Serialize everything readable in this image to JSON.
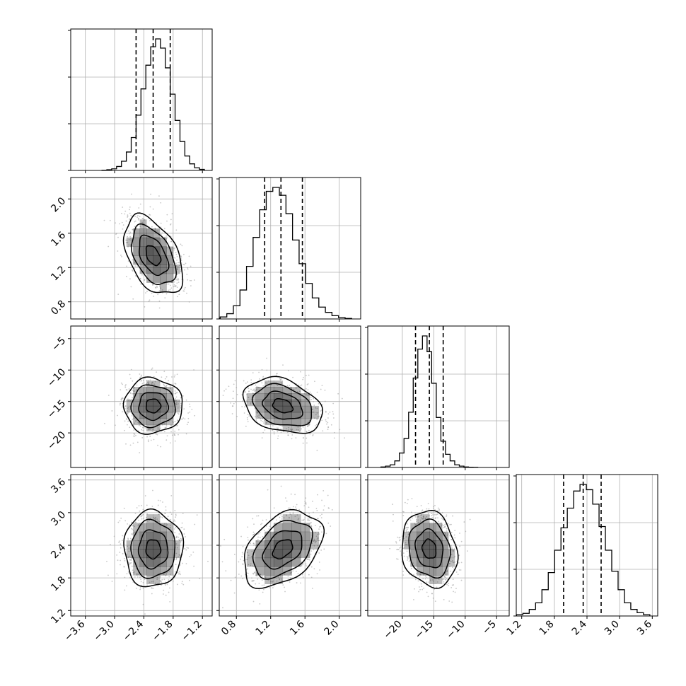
{
  "chart_data": {
    "type": "corner",
    "title": "",
    "parameters": [
      {
        "id": "p0",
        "label": "",
        "range": [
          -3.9,
          -1.0
        ],
        "ticks": [
          -3.6,
          -3.0,
          -2.4,
          -1.8,
          -1.2
        ],
        "tick_labels": [
          "−3.6",
          "−3.0",
          "−2.4",
          "−1.8",
          "−1.2"
        ],
        "quantiles": [
          -2.56,
          -2.21,
          -1.86
        ],
        "mean": -2.21,
        "sd": 0.3
      },
      {
        "id": "p1",
        "label": "",
        "range": [
          0.6,
          2.25
        ],
        "ticks": [
          0.8,
          1.2,
          1.6,
          2.0
        ],
        "tick_labels": [
          "0.8",
          "1.2",
          "1.6",
          "2.0"
        ],
        "quantiles": [
          1.13,
          1.32,
          1.57
        ],
        "mean": 1.34,
        "sd": 0.23
      },
      {
        "id": "p2",
        "label": "",
        "range": [
          -25.5,
          -3.0
        ],
        "ticks": [
          -20,
          -15,
          -10,
          -5
        ],
        "tick_labels": [
          "−20",
          "−15",
          "−10",
          "−5"
        ],
        "quantiles": [
          -17.9,
          -15.7,
          -13.5
        ],
        "mean": -15.7,
        "sd": 2.2
      },
      {
        "id": "p3",
        "label": "",
        "range": [
          1.1,
          3.7
        ],
        "ticks": [
          1.2,
          1.8,
          2.4,
          3.0,
          3.6
        ],
        "tick_labels": [
          "1.2",
          "1.8",
          "2.4",
          "3.0",
          "3.6"
        ],
        "quantiles": [
          1.97,
          2.33,
          2.66
        ],
        "mean": 2.33,
        "sd": 0.35
      }
    ],
    "correlations": [
      {
        "pair": [
          0,
          1
        ],
        "rho": -0.45
      },
      {
        "pair": [
          0,
          2
        ],
        "rho": 0.0
      },
      {
        "pair": [
          1,
          2
        ],
        "rho": -0.3
      },
      {
        "pair": [
          0,
          3
        ],
        "rho": 0.0
      },
      {
        "pair": [
          1,
          3
        ],
        "rho": 0.4
      },
      {
        "pair": [
          2,
          3
        ],
        "rho": -0.15
      }
    ],
    "histograms": [
      [
        0.002,
        0.005,
        0.012,
        0.03,
        0.07,
        0.14,
        0.25,
        0.42,
        0.62,
        0.8,
        0.94,
        1.0,
        0.93,
        0.78,
        0.58,
        0.38,
        0.22,
        0.11,
        0.05,
        0.02,
        0.008
      ],
      [
        0.005,
        0.015,
        0.04,
        0.1,
        0.22,
        0.4,
        0.62,
        0.83,
        0.97,
        1.0,
        0.94,
        0.8,
        0.6,
        0.42,
        0.27,
        0.16,
        0.09,
        0.05,
        0.025,
        0.01,
        0.004
      ],
      [
        0.004,
        0.01,
        0.02,
        0.05,
        0.11,
        0.22,
        0.42,
        0.68,
        0.9,
        1.0,
        0.88,
        0.64,
        0.38,
        0.2,
        0.1,
        0.05,
        0.02,
        0.01,
        0.004,
        0.002,
        0.001
      ],
      [
        0.01,
        0.02,
        0.05,
        0.1,
        0.2,
        0.33,
        0.5,
        0.67,
        0.82,
        0.95,
        1.0,
        0.96,
        0.85,
        0.68,
        0.5,
        0.34,
        0.2,
        0.1,
        0.05,
        0.025,
        0.01
      ]
    ],
    "grid": true,
    "contour_levels": [
      0.118,
      0.393,
      0.675,
      0.865
    ],
    "colors": {
      "line": "#000000",
      "grid": "#b0b0b0",
      "scatter": "#9a9a9a",
      "density": "#000000"
    }
  }
}
